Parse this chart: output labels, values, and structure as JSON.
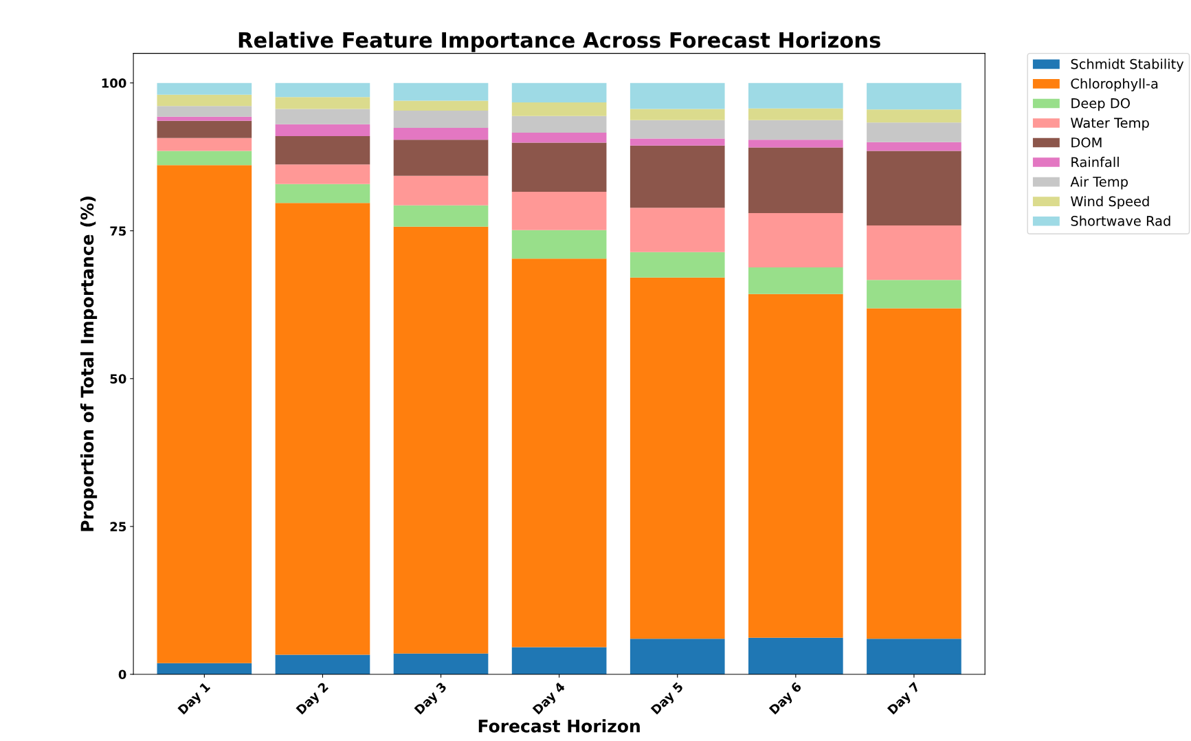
{
  "chart_data": {
    "type": "bar",
    "stacked": true,
    "title": "Relative Feature Importance Across Forecast Horizons",
    "xlabel": "Forecast Horizon",
    "ylabel": "Proportion of Total Importance (%)",
    "categories": [
      "Day 1",
      "Day 2",
      "Day 3",
      "Day 4",
      "Day 5",
      "Day 6",
      "Day 7"
    ],
    "ylim": [
      0,
      105
    ],
    "yticks": [
      0,
      25,
      50,
      75,
      100
    ],
    "grid": false,
    "legend": "top right",
    "series": [
      {
        "name": "Schmidt Stability",
        "color": "#1f77b4",
        "values": [
          1.9,
          3.3,
          3.5,
          4.6,
          6.0,
          6.2,
          6.0
        ]
      },
      {
        "name": "Chlorophyll-a",
        "color": "#ff7f0e",
        "values": [
          84.2,
          76.4,
          72.2,
          65.7,
          61.1,
          58.1,
          55.9
        ]
      },
      {
        "name": "Deep DO",
        "color": "#98df8a",
        "values": [
          2.4,
          3.2,
          3.6,
          4.8,
          4.3,
          4.5,
          4.8
        ]
      },
      {
        "name": "Water Temp",
        "color": "#ff9896",
        "values": [
          2.2,
          3.3,
          5.0,
          6.5,
          7.5,
          9.2,
          9.2
        ]
      },
      {
        "name": "DOM",
        "color": "#8c564b",
        "values": [
          2.9,
          4.8,
          6.1,
          8.3,
          10.5,
          11.1,
          12.6
        ]
      },
      {
        "name": "Rainfall",
        "color": "#e377c2",
        "values": [
          0.7,
          2.0,
          2.0,
          1.7,
          1.2,
          1.3,
          1.5
        ]
      },
      {
        "name": "Air Temp",
        "color": "#c7c7c7",
        "values": [
          1.8,
          2.6,
          2.9,
          2.8,
          3.1,
          3.3,
          3.3
        ]
      },
      {
        "name": "Wind Speed",
        "color": "#dbdb8d",
        "values": [
          1.9,
          2.0,
          1.7,
          2.3,
          1.9,
          2.0,
          2.2
        ]
      },
      {
        "name": "Shortwave Rad",
        "color": "#9edae5",
        "values": [
          2.0,
          2.4,
          3.0,
          3.3,
          4.4,
          4.3,
          4.5
        ]
      }
    ]
  }
}
